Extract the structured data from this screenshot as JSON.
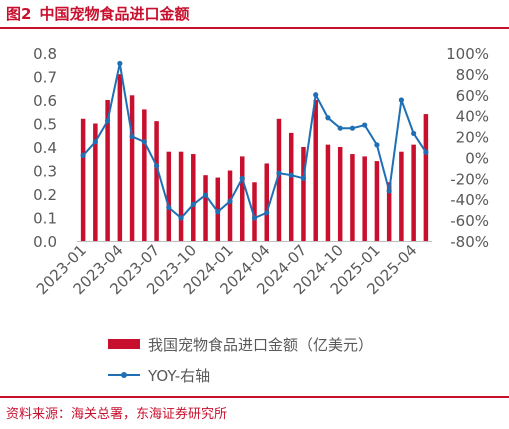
{
  "figure": {
    "label": "图2",
    "title": "中国宠物食品进口金额",
    "source": "资料来源：海关总署，东海证券研究所"
  },
  "colors": {
    "bar": "#c8102e",
    "line": "#1f6fb5",
    "accent": "#c8102e"
  },
  "chart_data": {
    "type": "bar+line",
    "x": [
      "2023-01",
      "2023-02",
      "2023-03",
      "2023-04",
      "2023-05",
      "2023-06",
      "2023-07",
      "2023-08",
      "2023-09",
      "2023-10",
      "2023-11",
      "2023-12",
      "2024-01",
      "2024-02",
      "2024-03",
      "2024-04",
      "2024-05",
      "2024-06",
      "2024-07",
      "2024-08",
      "2024-09",
      "2024-10",
      "2024-11",
      "2024-12",
      "2025-01",
      "2025-02",
      "2025-03",
      "2025-04",
      "2025-05"
    ],
    "x_tick_labels": [
      "2023-01",
      "2023-04",
      "2023-07",
      "2023-10",
      "2024-01",
      "2024-04",
      "2024-07",
      "2024-10",
      "2025-01",
      "2025-04"
    ],
    "series": [
      {
        "name": "我国宠物食品进口金额（亿美元）",
        "type": "bar",
        "axis": "left",
        "values": [
          0.52,
          0.5,
          0.6,
          0.71,
          0.62,
          0.56,
          0.51,
          0.38,
          0.38,
          0.37,
          0.28,
          0.27,
          0.3,
          0.36,
          0.25,
          0.33,
          0.52,
          0.46,
          0.4,
          0.6,
          0.41,
          0.4,
          0.37,
          0.36,
          0.34,
          0.25,
          0.38,
          0.41,
          0.54
        ]
      },
      {
        "name": "YOY-右轴",
        "type": "line",
        "axis": "right",
        "values": [
          2,
          15,
          35,
          90,
          20,
          15,
          -8,
          -48,
          -58,
          -45,
          -36,
          -52,
          -42,
          -20,
          -58,
          -53,
          -15,
          -17,
          -20,
          60,
          38,
          28,
          28,
          31,
          12,
          -32,
          55,
          23,
          5
        ]
      }
    ],
    "y_left": {
      "min": 0,
      "max": 0.8,
      "ticks": [
        "0.0",
        "0.1",
        "0.2",
        "0.3",
        "0.4",
        "0.5",
        "0.6",
        "0.7",
        "0.8"
      ]
    },
    "y_right": {
      "min": -80,
      "max": 100,
      "ticks": [
        "-80%",
        "-60%",
        "-40%",
        "-20%",
        "0%",
        "20%",
        "40%",
        "60%",
        "80%",
        "100%"
      ]
    },
    "legend_position": "bottom",
    "grid": false
  }
}
